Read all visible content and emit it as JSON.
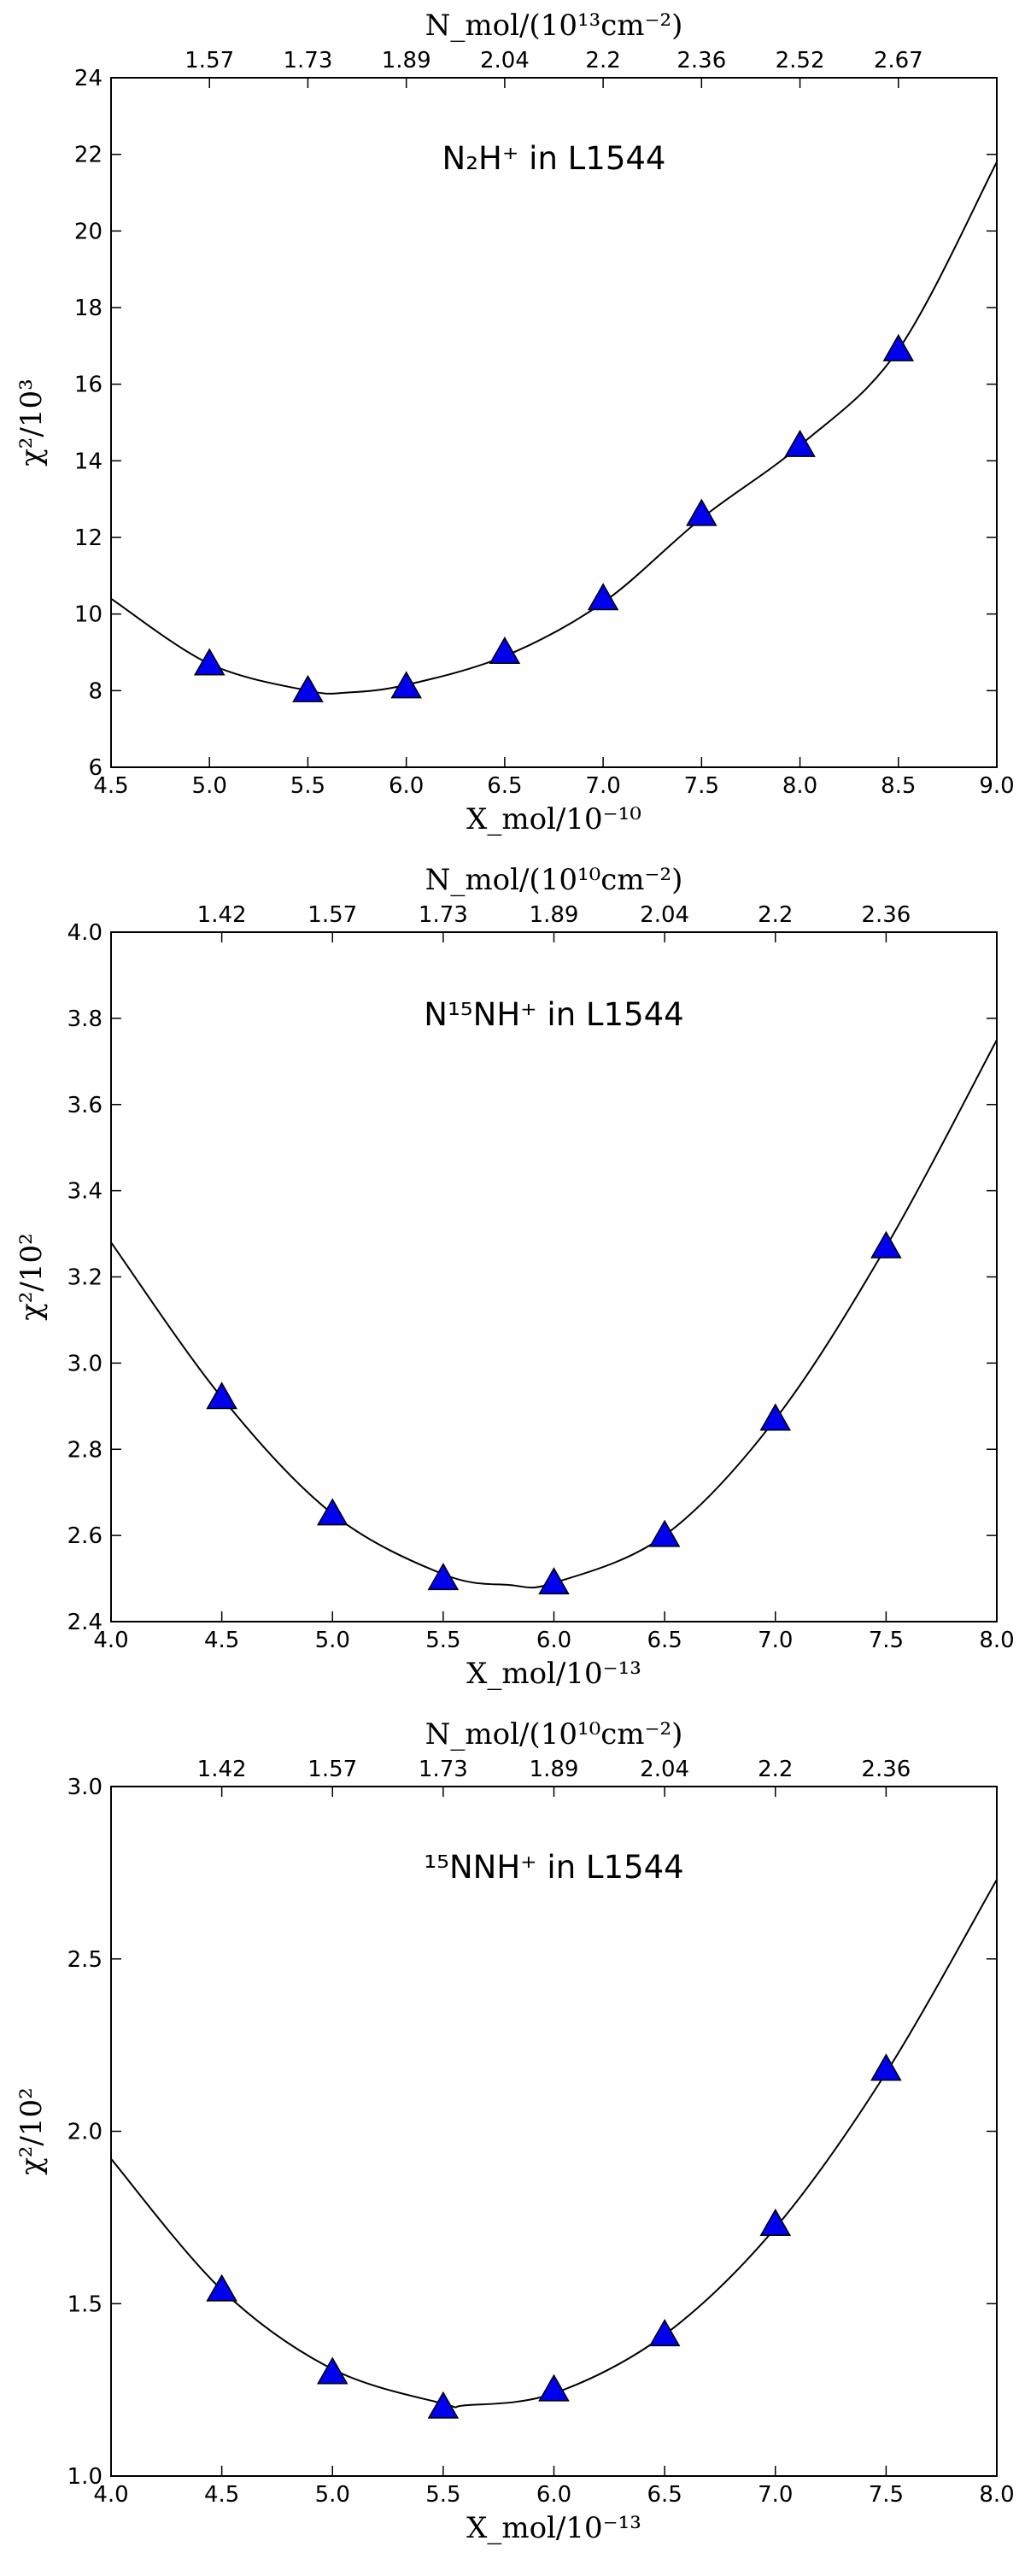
{
  "chart_data": [
    {
      "type": "scatter",
      "title": "N₂H⁺ in L1544",
      "xlabel": "X_mol/10⁻¹⁰",
      "ylabel": "χ²/10³",
      "top_xlabel": "N_mol/(10¹³cm⁻²)",
      "xlim": [
        4.5,
        9.0
      ],
      "ylim": [
        6,
        24
      ],
      "x_ticks": [
        "4.5",
        "5.0",
        "5.5",
        "6.0",
        "6.5",
        "7.0",
        "7.5",
        "8.0",
        "8.5",
        "9.0"
      ],
      "y_ticks": [
        "6",
        "8",
        "10",
        "12",
        "14",
        "16",
        "18",
        "20",
        "22",
        "24"
      ],
      "top_ticks": [
        {
          "x": 5.0,
          "label": "1.57"
        },
        {
          "x": 5.5,
          "label": "1.73"
        },
        {
          "x": 6.0,
          "label": "1.89"
        },
        {
          "x": 6.5,
          "label": "2.04"
        },
        {
          "x": 7.0,
          "label": "2.2"
        },
        {
          "x": 7.5,
          "label": "2.36"
        },
        {
          "x": 8.0,
          "label": "2.52"
        },
        {
          "x": 8.5,
          "label": "2.67"
        }
      ],
      "series": [
        {
          "marker": "triangle",
          "color": "#0000ee",
          "x": [
            5.0,
            5.5,
            6.0,
            6.5,
            7.0,
            7.5,
            8.0,
            8.5
          ],
          "y": [
            8.7,
            8.0,
            8.1,
            9.0,
            10.4,
            12.6,
            14.4,
            16.9
          ]
        },
        {
          "marker": "line",
          "color": "#000000",
          "x": [
            4.5,
            5.0,
            5.5,
            5.7,
            6.0,
            6.5,
            7.0,
            7.5,
            8.0,
            8.5,
            9.0
          ],
          "y": [
            10.4,
            8.7,
            8.0,
            7.95,
            8.15,
            8.9,
            10.3,
            12.5,
            14.4,
            16.9,
            21.8
          ]
        }
      ]
    },
    {
      "type": "scatter",
      "title": "N¹⁵NH⁺ in L1544",
      "xlabel": "X_mol/10⁻¹³",
      "ylabel": "χ²/10²",
      "top_xlabel": "N_mol/(10¹⁰cm⁻²)",
      "xlim": [
        4.0,
        8.0
      ],
      "ylim": [
        2.4,
        4.0
      ],
      "x_ticks": [
        "4.0",
        "4.5",
        "5.0",
        "5.5",
        "6.0",
        "6.5",
        "7.0",
        "7.5",
        "8.0"
      ],
      "y_ticks": [
        "2.4",
        "2.6",
        "2.8",
        "3.0",
        "3.2",
        "3.4",
        "3.6",
        "3.8",
        "4.0"
      ],
      "top_ticks": [
        {
          "x": 4.5,
          "label": "1.42"
        },
        {
          "x": 5.0,
          "label": "1.57"
        },
        {
          "x": 5.5,
          "label": "1.73"
        },
        {
          "x": 6.0,
          "label": "1.89"
        },
        {
          "x": 6.5,
          "label": "2.04"
        },
        {
          "x": 7.0,
          "label": "2.2"
        },
        {
          "x": 7.5,
          "label": "2.36"
        }
      ],
      "series": [
        {
          "marker": "triangle",
          "color": "#0000ee",
          "x": [
            4.5,
            5.0,
            5.5,
            6.0,
            6.5,
            7.0,
            7.5
          ],
          "y": [
            2.92,
            2.65,
            2.5,
            2.49,
            2.6,
            2.87,
            3.27
          ]
        },
        {
          "marker": "line",
          "color": "#000000",
          "x": [
            4.0,
            4.5,
            5.0,
            5.5,
            5.8,
            6.0,
            6.5,
            7.0,
            7.5,
            8.0
          ],
          "y": [
            3.28,
            2.92,
            2.65,
            2.51,
            2.485,
            2.49,
            2.6,
            2.87,
            3.27,
            3.75
          ]
        }
      ]
    },
    {
      "type": "scatter",
      "title": "¹⁵NNH⁺ in L1544",
      "xlabel": "X_mol/10⁻¹³",
      "ylabel": "χ²/10²",
      "top_xlabel": "N_mol/(10¹⁰cm⁻²)",
      "xlim": [
        4.0,
        8.0
      ],
      "ylim": [
        1.0,
        3.0
      ],
      "x_ticks": [
        "4.0",
        "4.5",
        "5.0",
        "5.5",
        "6.0",
        "6.5",
        "7.0",
        "7.5",
        "8.0"
      ],
      "y_ticks": [
        "1.0",
        "1.5",
        "2.0",
        "2.5",
        "3.0"
      ],
      "top_ticks": [
        {
          "x": 4.5,
          "label": "1.42"
        },
        {
          "x": 5.0,
          "label": "1.57"
        },
        {
          "x": 5.5,
          "label": "1.73"
        },
        {
          "x": 6.0,
          "label": "1.89"
        },
        {
          "x": 6.5,
          "label": "2.04"
        },
        {
          "x": 7.0,
          "label": "2.2"
        },
        {
          "x": 7.5,
          "label": "2.36"
        }
      ],
      "series": [
        {
          "marker": "triangle",
          "color": "#0000ee",
          "x": [
            4.5,
            5.0,
            5.5,
            6.0,
            6.5,
            7.0,
            7.5
          ],
          "y": [
            1.54,
            1.3,
            1.2,
            1.25,
            1.41,
            1.73,
            2.18
          ]
        },
        {
          "marker": "line",
          "color": "#000000",
          "x": [
            4.0,
            4.5,
            5.0,
            5.5,
            5.6,
            6.0,
            6.5,
            7.0,
            7.5,
            8.0
          ],
          "y": [
            1.92,
            1.54,
            1.31,
            1.21,
            1.205,
            1.24,
            1.41,
            1.72,
            2.17,
            2.73
          ]
        }
      ]
    }
  ]
}
